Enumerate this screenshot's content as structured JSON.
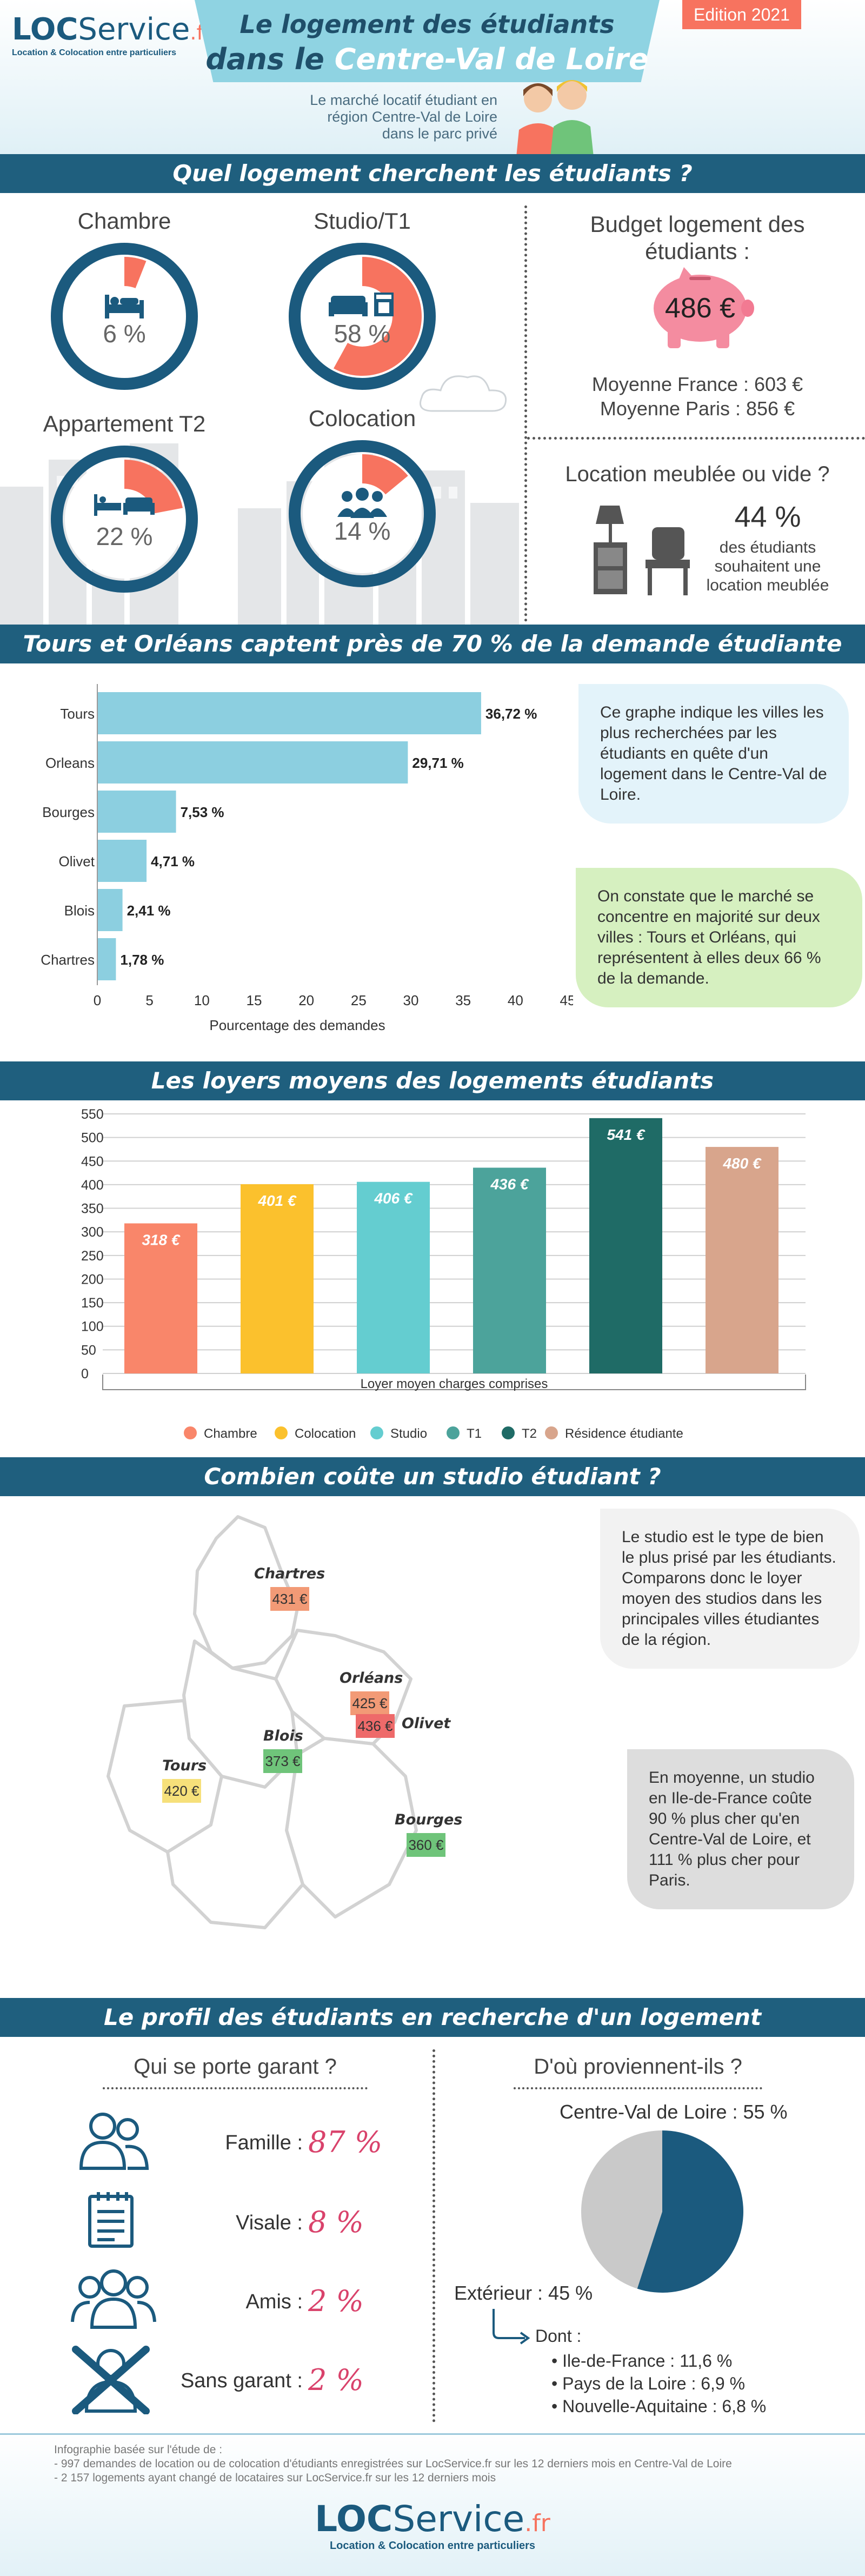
{
  "header": {
    "logo_brand": "LOC",
    "logo_service": "Service",
    "logo_tld": ".fr",
    "logo_tagline": "Location & Colocation entre particuliers",
    "title_line1": "Le logement des étudiants",
    "title_line2_pre": "dans le ",
    "title_line2_em": "Centre-Val de Loire",
    "edition": "Edition 2021",
    "subtitle_l1": "Le marché locatif étudiant en",
    "subtitle_l2": "région Centre-Val de Loire",
    "subtitle_l3": "dans le parc privé"
  },
  "section1": {
    "banner": "Quel logement cherchent les étudiants ?",
    "types": [
      {
        "label": "Chambre",
        "percent": 6,
        "value_text": "6 %",
        "icon": "bed-icon"
      },
      {
        "label": "Studio/T1",
        "percent": 58,
        "value_text": "58 %",
        "icon": "sofa-icon"
      },
      {
        "label": "Appartement T2",
        "percent": 22,
        "value_text": "22 %",
        "icon": "apartment-icon"
      },
      {
        "label": "Colocation",
        "percent": 14,
        "value_text": "14 %",
        "icon": "people-icon"
      }
    ],
    "budget": {
      "title_l1": "Budget logement des",
      "title_l2": "étudiants :",
      "amount": "486 €",
      "icon": "piggy-bank-icon",
      "france": "Moyenne France : 603 €",
      "paris": "Moyenne Paris : 856 €"
    },
    "furnished": {
      "title": "Location meublée ou vide ?",
      "percent_text": "44 %",
      "desc_l1": "des étudiants",
      "desc_l2": "souhaitent une",
      "desc_l3": "location meublée"
    }
  },
  "section2": {
    "banner": "Tours et Orléans captent près de 70 % de la demande étudiante",
    "bubble1": "Ce graphe indique les villes les plus recherchées par les étudiants en quête d'un logement dans le Centre-Val de Loire.",
    "bubble2": "On constate que le marché se concentre en majorité sur deux villes : Tours et Orléans, qui représentent à elles deux 66 % de la demande."
  },
  "section3": {
    "banner": "Les loyers moyens des logements étudiants"
  },
  "section4": {
    "banner": "Combien coûte un studio étudiant ?",
    "bubble1": "Le studio est le type de bien le plus prisé par les étudiants. Comparons donc le loyer moyen des studios dans les principales villes étudiantes de la région.",
    "bubble2": "En moyenne, un studio en Ile-de-France coûte 90 % plus cher qu'en Centre-Val de Loire, et 111 % plus cher pour Paris.",
    "cities": [
      {
        "name": "Chartres",
        "price": "431 €",
        "color": "#f29a76"
      },
      {
        "name": "Orléans",
        "price": "425 €",
        "color": "#f29a76"
      },
      {
        "name": "Olivet",
        "price": "436 €",
        "color": "#ee6a6a"
      },
      {
        "name": "Blois",
        "price": "373 €",
        "color": "#6fc47a"
      },
      {
        "name": "Tours",
        "price": "420 €",
        "color": "#f6e07a"
      },
      {
        "name": "Bourges",
        "price": "360 €",
        "color": "#6fc47a"
      }
    ]
  },
  "section5": {
    "banner": "Le profil des étudiants en recherche d'un logement",
    "guarantor_title": "Qui se porte garant ?",
    "guarantors": [
      {
        "label": "Famille :",
        "value": "87 %",
        "icon": "family-icon"
      },
      {
        "label": "Visale :",
        "value": "8 %",
        "icon": "document-icon"
      },
      {
        "label": "Amis :",
        "value": "2 %",
        "icon": "friends-icon"
      },
      {
        "label": "Sans garant :",
        "value": "2 %",
        "icon": "no-guarantor-icon"
      }
    ],
    "origin_title": "D'où proviennent-ils ?",
    "origin_centre": "Centre-Val de Loire : 55 %",
    "origin_ext": "Extérieur : 45 %",
    "origin_dont": "Dont :",
    "origin_list": [
      "Ile-de-France : 11,6 %",
      "Pays de la Loire : 6,9 %",
      "Nouvelle-Aquitaine : 6,8 %"
    ]
  },
  "footer": {
    "note_l1": "Infographie basée sur l'étude de :",
    "note_l2": "- 997 demandes de location ou de colocation d'étudiants enregistrées sur LocService.fr sur les 12 derniers mois en Centre-Val de Loire",
    "note_l3": "- 2 157 logements ayant changé de locataires sur LocService.fr sur les 12 derniers mois"
  },
  "colors": {
    "banner": "#1f5f7e",
    "navy": "#1b5a7e",
    "accent": "#f7735f",
    "price_pink": "#d9426b"
  },
  "chart_data": [
    {
      "type": "bar",
      "orientation": "horizontal",
      "categories": [
        "Tours",
        "Orleans",
        "Bourges",
        "Olivet",
        "Blois",
        "Chartres"
      ],
      "values": [
        36.72,
        29.71,
        7.53,
        4.71,
        2.41,
        1.78
      ],
      "value_labels": [
        "36,72 %",
        "29,71 %",
        "7,53 %",
        "4,71 %",
        "2,41 %",
        "1,78 %"
      ],
      "xlabel": "Pourcentage des demandes",
      "xlim": [
        0,
        45
      ],
      "xticks": [
        "0",
        "5",
        "10",
        "15",
        "20",
        "25",
        "30",
        "35",
        "40",
        "45"
      ],
      "bar_color": "#8ccfe0"
    },
    {
      "type": "bar",
      "categories": [
        "Chambre",
        "Colocation",
        "Studio",
        "T1",
        "T2",
        "Résidence étudiante"
      ],
      "values": [
        318,
        401,
        406,
        436,
        541,
        480
      ],
      "value_labels": [
        "318 €",
        "401 €",
        "406 €",
        "436 €",
        "541 €",
        "480 €"
      ],
      "colors": [
        "#f9866a",
        "#fbc12d",
        "#64cdd0",
        "#4ca39b",
        "#1f6b66",
        "#d8a58c"
      ],
      "xlabel": "Loyer moyen charges comprises",
      "ylim": [
        0,
        550
      ],
      "yticks": [
        "0",
        "50",
        "100",
        "150",
        "200",
        "250",
        "300",
        "350",
        "400",
        "450",
        "500",
        "550"
      ],
      "grid": true,
      "legend": "bottom"
    },
    {
      "type": "pie",
      "labels": [
        "Centre-Val de Loire",
        "Extérieur"
      ],
      "values": [
        55,
        45
      ],
      "colors": [
        "#1b5a7e",
        "#c9c9c9"
      ]
    }
  ]
}
